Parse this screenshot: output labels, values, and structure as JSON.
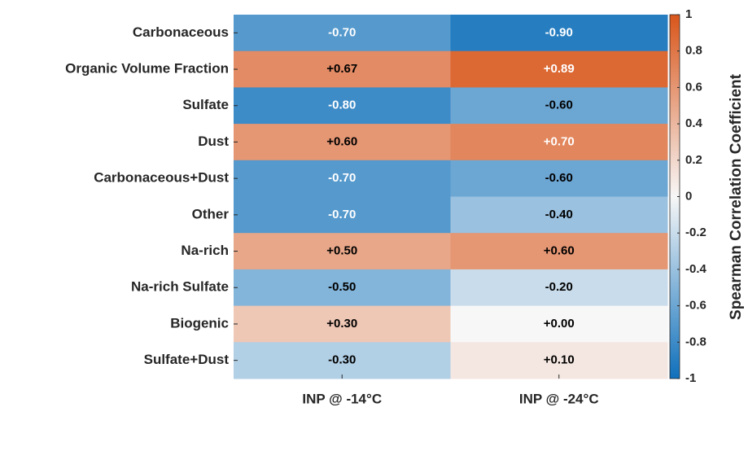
{
  "chart_data": {
    "type": "heatmap",
    "rows": [
      "Carbonaceous",
      "Organic Volume Fraction",
      "Sulfate",
      "Dust",
      "Carbonaceous+Dust",
      "Other",
      "Na-rich",
      "Na-rich Sulfate",
      "Biogenic",
      "Sulfate+Dust"
    ],
    "columns": [
      "INP @ -14°C",
      "INP @ -24°C"
    ],
    "values": [
      [
        -0.7,
        -0.9
      ],
      [
        0.67,
        0.89
      ],
      [
        -0.8,
        -0.6
      ],
      [
        0.6,
        0.7
      ],
      [
        -0.7,
        -0.6
      ],
      [
        -0.7,
        -0.4
      ],
      [
        0.5,
        0.6
      ],
      [
        -0.5,
        -0.2
      ],
      [
        0.3,
        0.0
      ],
      [
        -0.3,
        0.1
      ]
    ],
    "value_labels": [
      [
        "-0.70",
        "-0.90"
      ],
      [
        "+0.67",
        "+0.89"
      ],
      [
        "-0.80",
        "-0.60"
      ],
      [
        "+0.60",
        "+0.70"
      ],
      [
        "-0.70",
        "-0.60"
      ],
      [
        "-0.70",
        "-0.40"
      ],
      [
        "+0.50",
        "+0.60"
      ],
      [
        "-0.50",
        "-0.20"
      ],
      [
        "+0.30",
        "+0.00"
      ],
      [
        "-0.30",
        "+0.10"
      ]
    ],
    "colormap": [
      "#0f70bb",
      "#f7f7f7",
      "#d9561b"
    ],
    "clim": [
      -1,
      1
    ],
    "colorbar_ticks": [
      1,
      0.8,
      0.6,
      0.4,
      0.2,
      0,
      -0.2,
      -0.4,
      -0.6,
      -0.8,
      -1
    ],
    "colorbar_label": "Spearman Correlation Coefficient"
  }
}
